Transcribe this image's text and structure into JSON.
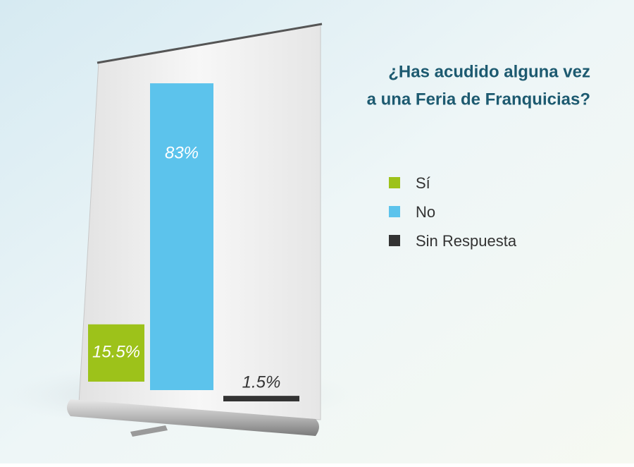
{
  "chart_data": {
    "type": "bar",
    "title": [
      "¿Has acudido alguna vez",
      "a una Feria de Franquicias?"
    ],
    "categories": [
      "Sí",
      "No",
      "Sin Respuesta"
    ],
    "values": [
      15.5,
      83,
      1.5
    ],
    "value_labels": [
      "15.5%",
      "83%",
      "1.5%"
    ],
    "colors": [
      "#9dc21a",
      "#5cc3ec",
      "#333333"
    ],
    "legend": "right"
  }
}
